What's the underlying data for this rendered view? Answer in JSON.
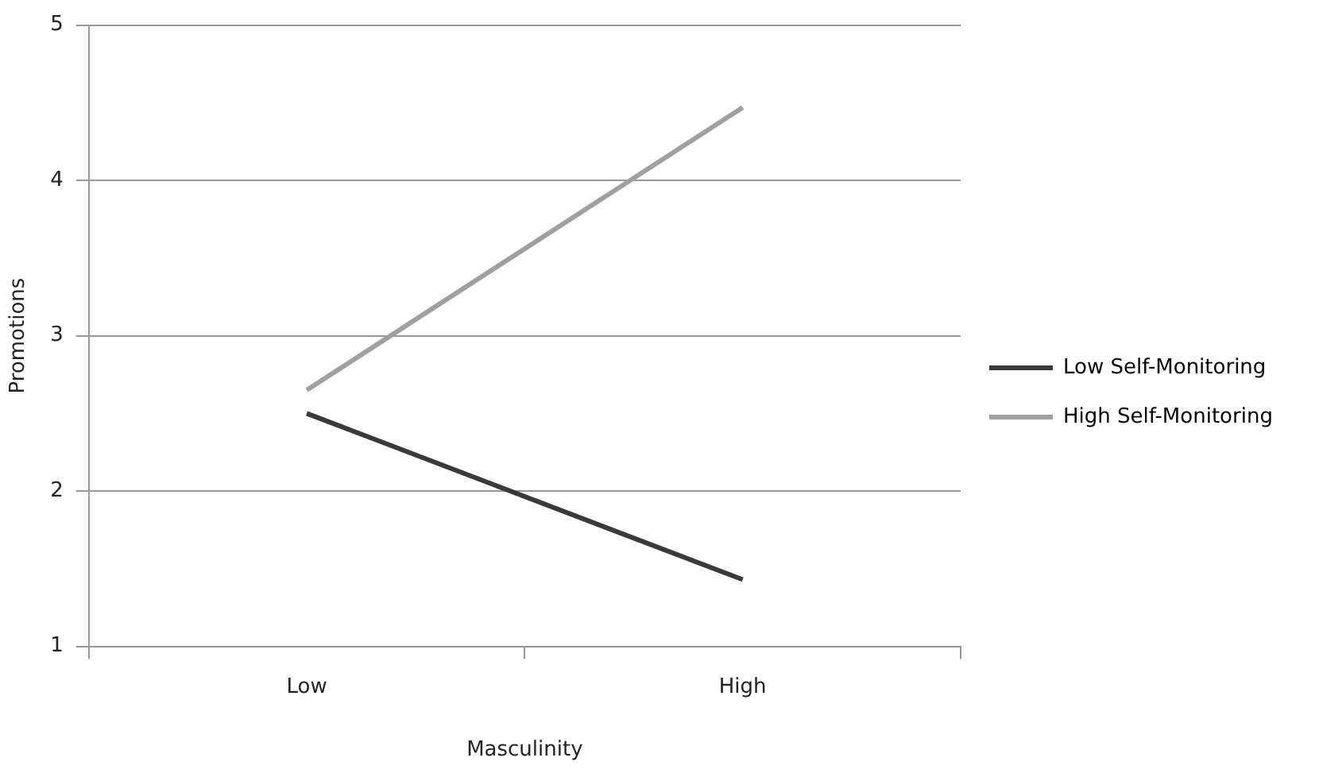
{
  "chart_data": {
    "type": "line",
    "xlabel": "Masculinity",
    "ylabel": "Promotions",
    "categories": [
      "Low",
      "High"
    ],
    "series": [
      {
        "name": "Low Self-Monitoring",
        "color": "#3a3a3a",
        "values": [
          2.5,
          1.43
        ]
      },
      {
        "name": "High Self-Monitoring",
        "color": "#a0a0a0",
        "values": [
          2.65,
          4.47
        ]
      }
    ],
    "ylim": [
      1,
      5
    ],
    "yticks": [
      1,
      2,
      3,
      4,
      5
    ],
    "grid": "y",
    "legend": "right",
    "marker": "none",
    "line_style": "solid"
  }
}
